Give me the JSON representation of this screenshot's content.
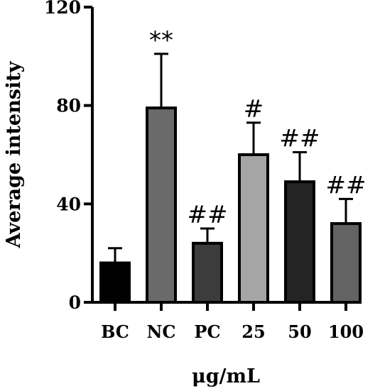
{
  "chart_data": {
    "type": "bar",
    "title": "",
    "xlabel": "μg/mL",
    "ylabel": "Average intensity",
    "ylim": [
      0,
      120
    ],
    "yticks": [
      0,
      40,
      80,
      120
    ],
    "grid": false,
    "categories": [
      "BC",
      "NC",
      "PC",
      "25",
      "50",
      "100"
    ],
    "values": [
      16,
      79,
      24,
      60,
      49,
      32
    ],
    "errors": [
      6,
      22,
      6,
      13,
      12,
      10
    ],
    "annotations": [
      "",
      "**",
      "##",
      "#",
      "##",
      "##"
    ],
    "colors": [
      "#000000",
      "#6a6a6a",
      "#3c3c3c",
      "#a5a5a5",
      "#242424",
      "#636363"
    ]
  }
}
